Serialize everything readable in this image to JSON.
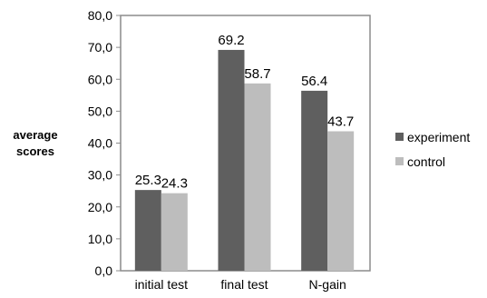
{
  "chart_data": {
    "type": "bar",
    "ylabel": "average\nscores",
    "categories": [
      "initial test",
      "final test",
      "N-gain"
    ],
    "series": [
      {
        "name": "experiment",
        "values": [
          25.3,
          69.2,
          56.4
        ],
        "labels": [
          "25.3",
          "69.2",
          "56.4"
        ],
        "color": "#5f5f5f"
      },
      {
        "name": "control",
        "values": [
          24.3,
          58.7,
          43.7
        ],
        "labels": [
          "24.3",
          "58.7",
          "43.7"
        ],
        "color": "#bdbdbd"
      }
    ],
    "ylim": [
      0,
      80
    ],
    "yticks": [
      "0,0",
      "10,0",
      "20,0",
      "30,0",
      "40,0",
      "50,0",
      "60,0",
      "70,0",
      "80,0"
    ],
    "grid": false,
    "legend_position": "right"
  }
}
